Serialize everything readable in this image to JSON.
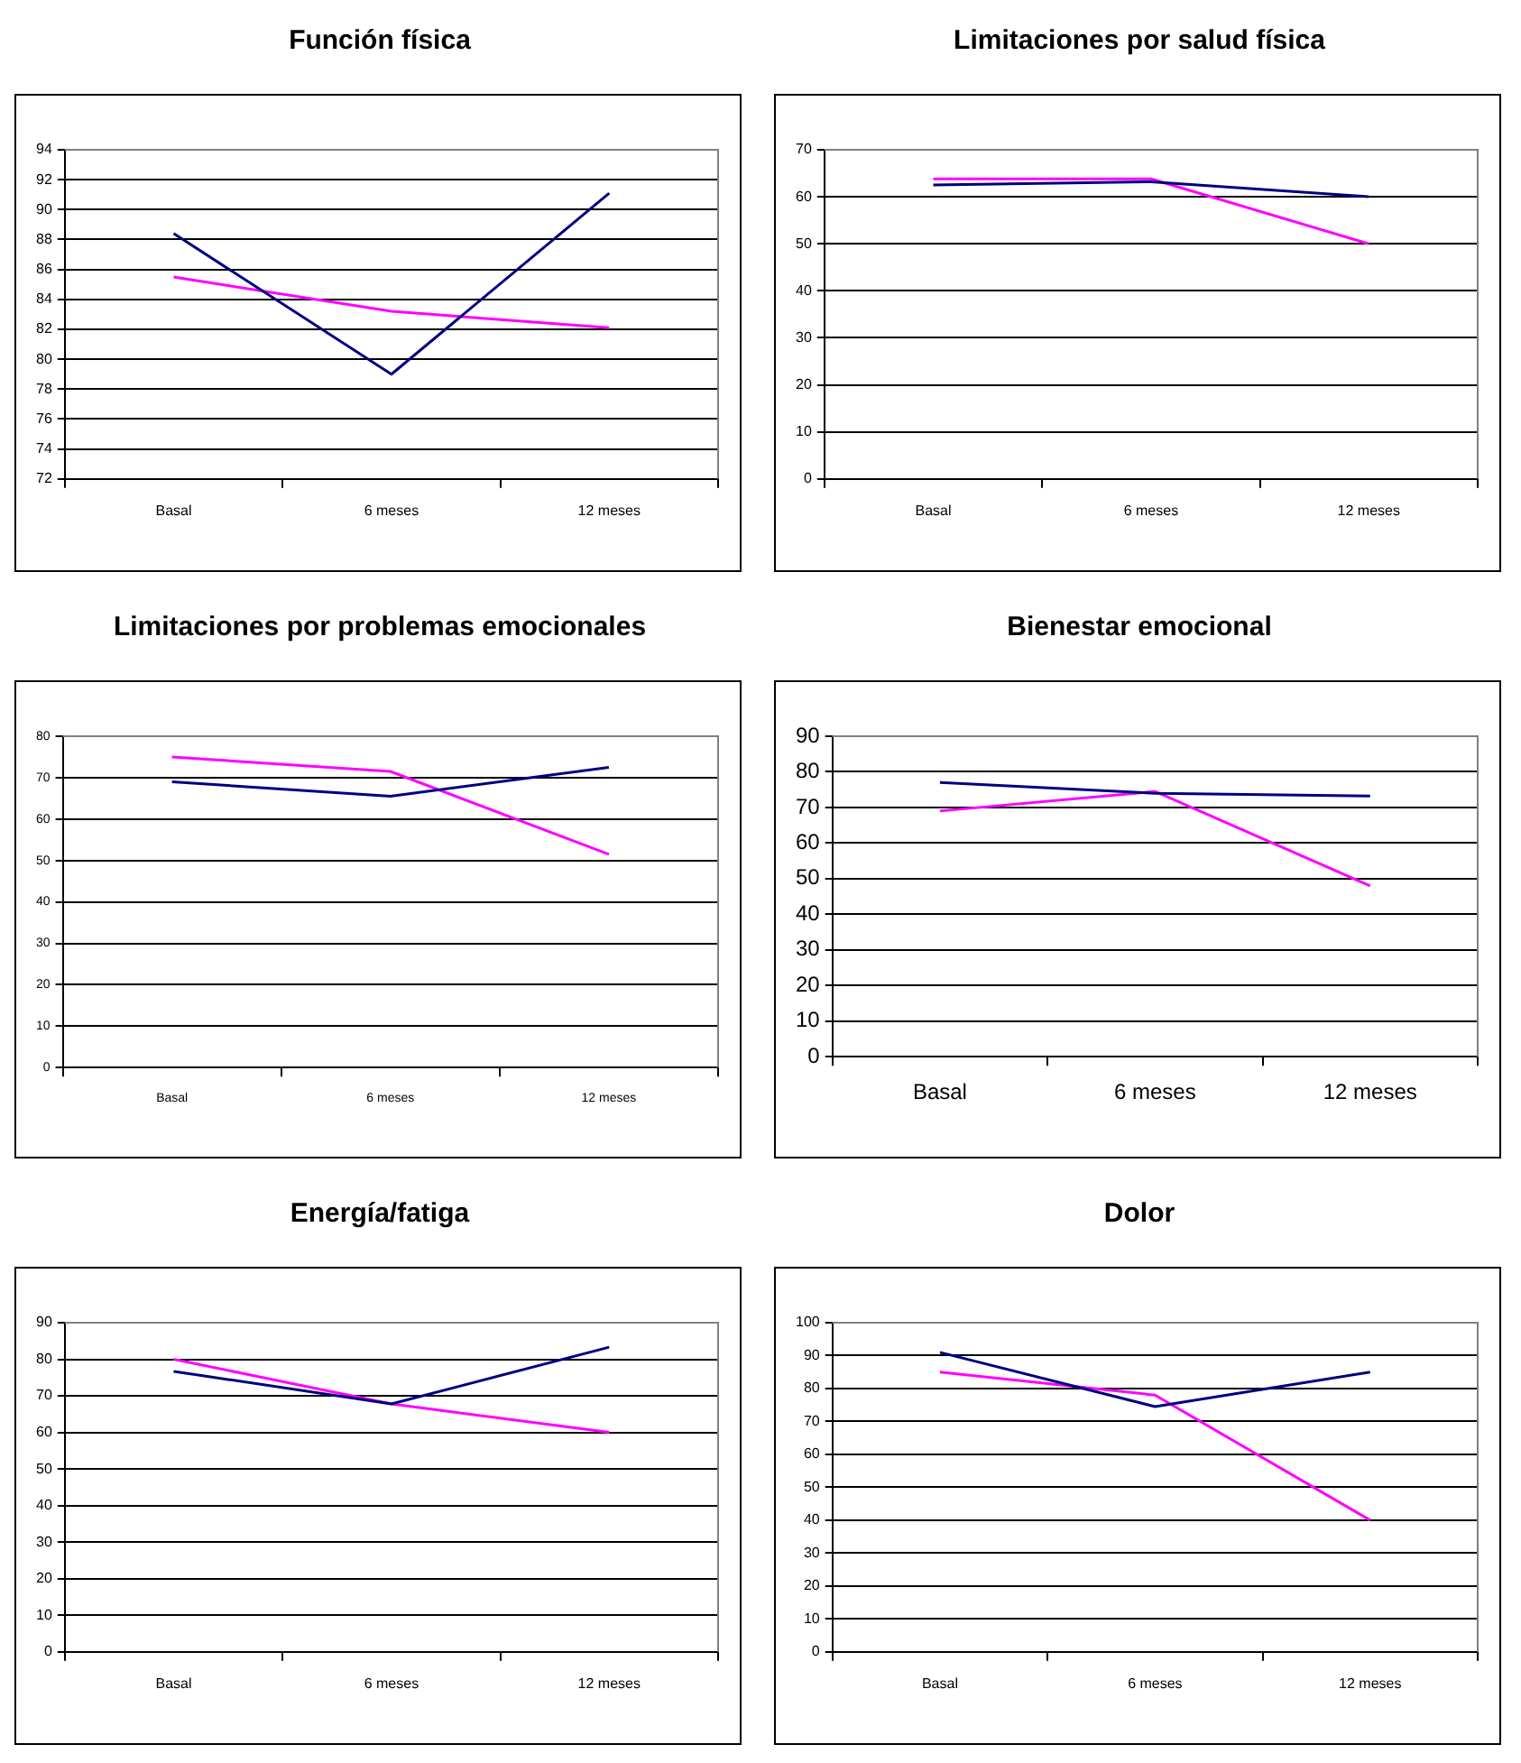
{
  "chart_data": [
    {
      "type": "line",
      "title": "Función física",
      "categories": [
        "Basal",
        "6 meses",
        "12 meses"
      ],
      "series": [
        {
          "color": "#000080",
          "values": [
            88.4,
            79,
            91.1
          ]
        },
        {
          "color": "#ff00ff",
          "values": [
            85.5,
            83.2,
            82.1
          ]
        }
      ],
      "ylim": [
        72,
        94
      ],
      "yticks": [
        72,
        74,
        76,
        78,
        80,
        82,
        84,
        86,
        88,
        90,
        92,
        94
      ],
      "grid": "y",
      "legend": false,
      "marker": "none"
    },
    {
      "type": "line",
      "title": "Limitaciones por salud física",
      "categories": [
        "Basal",
        "6 meses",
        "12 meses"
      ],
      "series": [
        {
          "color": "#000080",
          "values": [
            62.5,
            63.2,
            60
          ]
        },
        {
          "color": "#ff00ff",
          "values": [
            63.8,
            63.8,
            50
          ]
        }
      ],
      "ylim": [
        0,
        70
      ],
      "yticks": [
        0,
        10,
        20,
        30,
        40,
        50,
        60,
        70
      ],
      "grid": "y",
      "legend": false,
      "marker": "none"
    },
    {
      "type": "line",
      "title": "Limitaciones por problemas emocionales",
      "categories": [
        "Basal",
        "6 meses",
        "12 meses"
      ],
      "series": [
        {
          "color": "#000080",
          "values": [
            69,
            65.5,
            72.5
          ]
        },
        {
          "color": "#ff00ff",
          "values": [
            75,
            71.5,
            51.5
          ]
        }
      ],
      "ylim": [
        0,
        80
      ],
      "yticks": [
        0,
        10,
        20,
        30,
        40,
        50,
        60,
        70,
        80
      ],
      "grid": "y",
      "legend": false,
      "marker": "none"
    },
    {
      "type": "line",
      "title": "Bienestar emocional",
      "categories": [
        "Basal",
        "6 meses",
        "12 meses"
      ],
      "series": [
        {
          "color": "#000080",
          "values": [
            77,
            74,
            73.2
          ]
        },
        {
          "color": "#ff00ff",
          "values": [
            69,
            74.5,
            48
          ]
        }
      ],
      "ylim": [
        0,
        90
      ],
      "yticks": [
        0,
        10,
        20,
        30,
        40,
        50,
        60,
        70,
        80,
        90
      ],
      "grid": "y",
      "legend": false,
      "marker": "none"
    },
    {
      "type": "line",
      "title": "Energía/fatiga",
      "categories": [
        "Basal",
        "6 meses",
        "12 meses"
      ],
      "series": [
        {
          "color": "#000080",
          "values": [
            76.7,
            67.8,
            83.3
          ]
        },
        {
          "color": "#ff00ff",
          "values": [
            80,
            67.8,
            60
          ]
        }
      ],
      "ylim": [
        0,
        90
      ],
      "yticks": [
        0,
        10,
        20,
        30,
        40,
        50,
        60,
        70,
        80,
        90
      ],
      "grid": "y",
      "legend": false,
      "marker": "none"
    },
    {
      "type": "line",
      "title": "Dolor",
      "categories": [
        "Basal",
        "6 meses",
        "12 meses"
      ],
      "series": [
        {
          "color": "#000080",
          "values": [
            91,
            74.5,
            85
          ]
        },
        {
          "color": "#ff00ff",
          "values": [
            85,
            78,
            40
          ]
        }
      ],
      "ylim": [
        0,
        100
      ],
      "yticks": [
        0,
        10,
        20,
        30,
        40,
        50,
        60,
        70,
        80,
        90,
        100
      ],
      "grid": "y",
      "legend": false,
      "marker": "none"
    }
  ]
}
